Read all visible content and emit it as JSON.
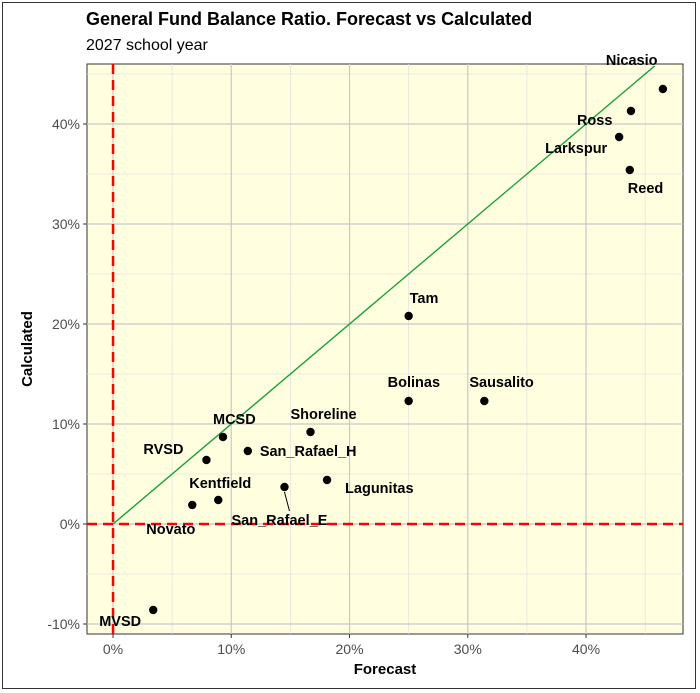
{
  "chart_data": {
    "type": "scatter",
    "title": "General Fund Balance Ratio. Forecast vs Calculated",
    "subtitle": "2027 school year",
    "xlabel": "Forecast",
    "ylabel": "Calculated",
    "xlim": [
      -2.2,
      48.2
    ],
    "ylim": [
      -11,
      46
    ],
    "xticks": [
      0,
      10,
      20,
      30,
      40
    ],
    "xtick_labels": [
      "0%",
      "10%",
      "20%",
      "30%",
      "40%"
    ],
    "yticks": [
      -10,
      0,
      10,
      20,
      30,
      40
    ],
    "ytick_labels": [
      "-10%",
      "0%",
      "10%",
      "20%",
      "30%",
      "40%"
    ],
    "background": "#ffffe0",
    "grid": true,
    "reference_line": {
      "from": [
        0,
        0
      ],
      "to": [
        45.8,
        45.8
      ],
      "color": "#1aa13b"
    },
    "zero_lines_color": "#ff0000",
    "points": [
      {
        "label": "Nicasio",
        "x": 46.5,
        "y": 43.5
      },
      {
        "label": "Ross",
        "x": 43.8,
        "y": 41.3
      },
      {
        "label": "Larkspur",
        "x": 42.8,
        "y": 38.7
      },
      {
        "label": "Reed",
        "x": 43.7,
        "y": 35.4
      },
      {
        "label": "Tam",
        "x": 25.0,
        "y": 20.8
      },
      {
        "label": "Bolinas",
        "x": 25.0,
        "y": 12.3
      },
      {
        "label": "Sausalito",
        "x": 31.4,
        "y": 12.3
      },
      {
        "label": "Shoreline",
        "x": 16.7,
        "y": 9.2
      },
      {
        "label": "MCSD",
        "x": 9.3,
        "y": 8.7
      },
      {
        "label": "San_Rafael_H",
        "x": 11.4,
        "y": 7.3
      },
      {
        "label": "RVSD",
        "x": 7.9,
        "y": 6.4
      },
      {
        "label": "Lagunitas",
        "x": 18.1,
        "y": 4.4
      },
      {
        "label": "San_Rafael_E",
        "x": 14.5,
        "y": 3.7
      },
      {
        "label": "Kentfield",
        "x": 8.9,
        "y": 2.4
      },
      {
        "label": "Novato",
        "x": 6.7,
        "y": 1.9
      },
      {
        "label": "MVSD",
        "x": 3.4,
        "y": -8.6
      }
    ]
  }
}
